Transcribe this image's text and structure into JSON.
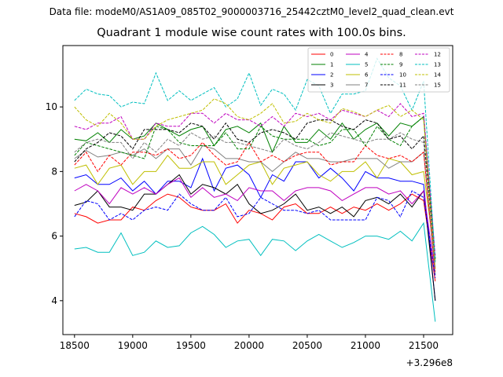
{
  "header": {
    "data_file": "Data file: modeM0/AS1A09_085T02_9000003716_25442cztM0_level2_quad_clean.evt"
  },
  "chart_data": {
    "type": "line",
    "title": "Quadrant 1 module wise count rates with 100.0s bins.",
    "xlabel": "",
    "ylabel": "",
    "x_offset_label": "+3.296e8",
    "xlim": [
      18400,
      21750
    ],
    "ylim": [
      2.95,
      11.9
    ],
    "xticks": [
      18500,
      19000,
      19500,
      20000,
      20500,
      21000,
      21500
    ],
    "yticks": [
      4,
      6,
      8,
      10
    ],
    "grid": false,
    "legend_location": "upper right",
    "x": [
      18500,
      18600,
      18700,
      18800,
      18900,
      19000,
      19100,
      19200,
      19300,
      19400,
      19500,
      19600,
      19700,
      19800,
      19900,
      20000,
      20100,
      20200,
      20300,
      20400,
      20500,
      20600,
      20700,
      20800,
      20900,
      21000,
      21100,
      21200,
      21300,
      21400,
      21500,
      21600
    ],
    "series": [
      {
        "name": "0",
        "color": "#ff0000",
        "dash": "solid",
        "values": [
          6.7,
          6.6,
          6.4,
          6.5,
          6.5,
          6.9,
          6.8,
          7.1,
          7.3,
          7.2,
          6.9,
          6.8,
          6.8,
          7.0,
          6.4,
          6.8,
          6.7,
          6.5,
          6.9,
          7.0,
          6.7,
          6.7,
          6.9,
          6.7,
          6.9,
          6.8,
          7.0,
          6.8,
          7.0,
          7.3,
          7.1,
          4.6
        ]
      },
      {
        "name": "1",
        "color": "#008000",
        "dash": "solid",
        "values": [
          9.0,
          8.95,
          9.2,
          8.9,
          9.3,
          9.0,
          9.1,
          9.5,
          9.3,
          9.1,
          9.3,
          9.4,
          8.8,
          9.3,
          9.4,
          9.2,
          9.5,
          8.6,
          9.4,
          8.9,
          8.9,
          9.3,
          9.0,
          9.5,
          9.0,
          9.3,
          9.5,
          9.1,
          9.5,
          9.4,
          9.7,
          5.2
        ]
      },
      {
        "name": "2",
        "color": "#0000ff",
        "dash": "solid",
        "values": [
          7.8,
          7.9,
          7.6,
          7.6,
          7.8,
          7.4,
          7.7,
          7.3,
          7.7,
          7.7,
          7.5,
          8.4,
          7.4,
          8.1,
          8.2,
          7.9,
          7.2,
          7.9,
          7.7,
          8.3,
          8.3,
          7.8,
          8.1,
          7.8,
          7.4,
          8.0,
          7.8,
          7.8,
          7.7,
          7.7,
          7.6,
          4.0
        ]
      },
      {
        "name": "3",
        "color": "#000000",
        "dash": "solid",
        "values": [
          6.95,
          7.05,
          7.4,
          6.9,
          6.9,
          6.8,
          7.3,
          7.3,
          7.6,
          7.9,
          7.3,
          7.6,
          7.5,
          7.3,
          7.6,
          7.0,
          6.7,
          6.8,
          7.0,
          7.3,
          6.8,
          6.9,
          6.7,
          6.9,
          6.6,
          7.1,
          7.2,
          7.0,
          7.3,
          6.9,
          7.4,
          4.0
        ]
      },
      {
        "name": "4",
        "color": "#bf00bf",
        "dash": "solid",
        "values": [
          7.4,
          7.6,
          7.4,
          7.0,
          7.5,
          7.3,
          7.5,
          7.3,
          7.6,
          7.8,
          7.2,
          7.5,
          7.2,
          7.3,
          7.1,
          7.5,
          7.4,
          7.4,
          7.1,
          7.4,
          7.5,
          7.5,
          7.4,
          7.1,
          7.3,
          7.5,
          7.5,
          7.3,
          7.4,
          7.0,
          7.4,
          4.8
        ]
      },
      {
        "name": "5",
        "color": "#00bfbf",
        "dash": "solid",
        "values": [
          5.6,
          5.65,
          5.5,
          5.5,
          6.1,
          5.4,
          5.5,
          5.85,
          5.65,
          5.7,
          6.1,
          6.3,
          6.05,
          5.65,
          5.85,
          5.9,
          5.4,
          5.9,
          5.85,
          5.55,
          5.85,
          6.05,
          5.85,
          5.65,
          5.8,
          6.0,
          6.0,
          5.9,
          6.15,
          5.85,
          6.4,
          3.35
        ]
      },
      {
        "name": "6",
        "color": "#bfbf00",
        "dash": "solid",
        "values": [
          8.1,
          8.2,
          7.6,
          8.1,
          8.2,
          7.6,
          8.0,
          8.0,
          8.5,
          8.1,
          8.1,
          8.3,
          8.3,
          7.6,
          7.9,
          8.2,
          8.3,
          7.6,
          8.1,
          8.2,
          8.3,
          7.9,
          7.7,
          8.0,
          8.0,
          8.3,
          7.8,
          8.4,
          8.3,
          7.9,
          8.0,
          5.2
        ]
      },
      {
        "name": "7",
        "color": "#808080",
        "dash": "solid",
        "values": [
          8.4,
          8.65,
          8.45,
          8.5,
          8.6,
          8.5,
          8.7,
          8.4,
          8.7,
          8.7,
          8.2,
          8.8,
          8.7,
          8.4,
          8.4,
          8.3,
          8.3,
          8.0,
          8.3,
          8.6,
          8.4,
          8.4,
          8.3,
          8.3,
          8.4,
          8.4,
          8.4,
          8.1,
          8.3,
          8.3,
          8.6,
          4.8
        ]
      },
      {
        "name": "8",
        "color": "#ff0000",
        "dash": "dashed",
        "values": [
          8.2,
          8.6,
          8.0,
          8.5,
          8.2,
          8.6,
          8.6,
          8.5,
          8.7,
          8.4,
          8.5,
          8.9,
          8.5,
          8.2,
          8.3,
          8.9,
          8.3,
          8.5,
          8.3,
          8.5,
          8.6,
          8.6,
          8.2,
          8.3,
          8.3,
          8.8,
          8.5,
          8.4,
          8.5,
          8.3,
          8.6,
          4.9
        ]
      },
      {
        "name": "9",
        "color": "#008000",
        "dash": "dashed",
        "values": [
          8.5,
          8.9,
          8.8,
          8.7,
          8.6,
          8.5,
          8.4,
          9.4,
          9.3,
          8.9,
          8.8,
          8.8,
          8.8,
          9.2,
          8.7,
          8.7,
          9.4,
          9.1,
          9.0,
          9.0,
          9.0,
          8.8,
          8.9,
          9.3,
          9.3,
          8.8,
          9.4,
          9.0,
          8.8,
          9.4,
          9.7,
          5.3
        ]
      },
      {
        "name": "10",
        "color": "#0000ff",
        "dash": "dashed",
        "values": [
          6.6,
          7.1,
          7.0,
          6.5,
          6.7,
          6.5,
          6.8,
          6.9,
          6.8,
          7.3,
          7.0,
          6.8,
          6.8,
          7.2,
          6.6,
          6.7,
          7.2,
          7.0,
          6.8,
          6.8,
          6.7,
          6.8,
          6.5,
          6.5,
          6.5,
          6.5,
          7.2,
          7.1,
          6.6,
          7.4,
          7.2,
          4.7
        ]
      },
      {
        "name": "11",
        "color": "#000000",
        "dash": "dashed",
        "values": [
          8.3,
          8.7,
          8.9,
          9.2,
          9.1,
          8.7,
          9.3,
          9.3,
          9.3,
          9.2,
          9.5,
          9.4,
          9.0,
          9.5,
          9.0,
          8.9,
          9.2,
          9.3,
          9.2,
          9.0,
          9.5,
          9.6,
          9.6,
          9.4,
          9.3,
          9.6,
          9.5,
          9.0,
          9.1,
          8.7,
          9.1,
          5.3
        ]
      },
      {
        "name": "12",
        "color": "#bf00bf",
        "dash": "dashed",
        "values": [
          9.4,
          9.3,
          9.5,
          9.5,
          9.7,
          9.0,
          9.0,
          9.5,
          9.4,
          9.4,
          9.8,
          9.8,
          9.5,
          9.8,
          9.6,
          9.6,
          9.4,
          9.7,
          9.4,
          9.8,
          9.7,
          9.8,
          9.6,
          9.9,
          9.8,
          9.7,
          9.9,
          9.7,
          10.1,
          9.7,
          9.8,
          5.4
        ]
      },
      {
        "name": "13",
        "color": "#00bfbf",
        "dash": "dashed",
        "values": [
          10.2,
          10.55,
          10.4,
          10.35,
          10.0,
          10.15,
          10.1,
          11.05,
          10.2,
          10.5,
          10.2,
          10.4,
          10.6,
          10.0,
          10.25,
          11.05,
          10.05,
          10.55,
          10.4,
          9.9,
          10.85,
          10.65,
          9.8,
          10.4,
          10.4,
          10.5,
          11.5,
          10.9,
          10.65,
          9.9,
          10.8,
          5.2
        ]
      },
      {
        "name": "14",
        "color": "#bfbf00",
        "dash": "dashed",
        "values": [
          10.0,
          9.6,
          9.4,
          9.8,
          9.5,
          9.0,
          9.0,
          9.4,
          9.6,
          9.7,
          9.8,
          9.9,
          10.25,
          10.1,
          9.7,
          9.6,
          9.8,
          10.1,
          9.5,
          9.55,
          9.8,
          9.6,
          9.5,
          9.95,
          9.85,
          9.7,
          9.9,
          10.05,
          9.7,
          9.9,
          9.6,
          5.0
        ]
      },
      {
        "name": "15",
        "color": "#808080",
        "dash": "dashed",
        "values": [
          8.6,
          8.9,
          9.0,
          8.9,
          8.9,
          8.4,
          8.9,
          8.6,
          9.0,
          8.8,
          9.2,
          9.0,
          9.1,
          8.9,
          8.9,
          8.8,
          8.7,
          8.6,
          9.0,
          8.8,
          8.7,
          8.9,
          9.2,
          9.1,
          9.0,
          8.9,
          9.0,
          9.0,
          9.2,
          9.0,
          8.9,
          5.0
        ]
      }
    ]
  }
}
